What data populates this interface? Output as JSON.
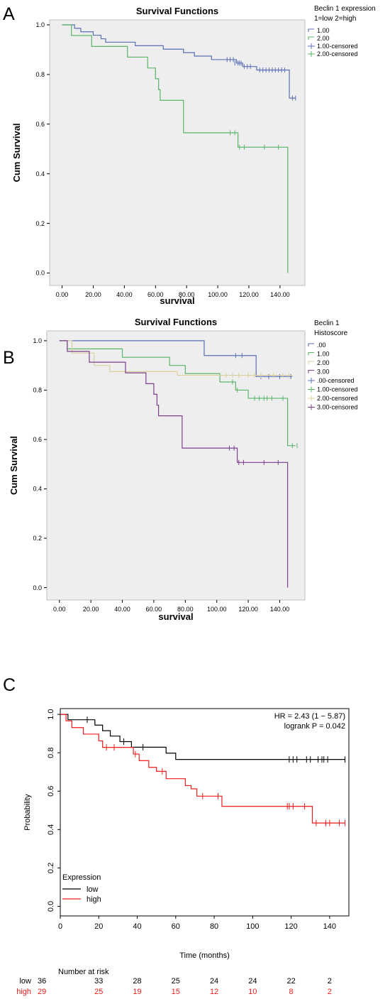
{
  "panels": {
    "A": {
      "letter": "A"
    },
    "B": {
      "letter": "B"
    },
    "C": {
      "letter": "C"
    }
  },
  "chart_data": [
    {
      "id": "A",
      "type": "line",
      "step": true,
      "title": "Survival Functions",
      "xlabel": "survival",
      "ylabel": "Cum Survival",
      "xlim": [
        -8,
        156
      ],
      "ylim": [
        -0.05,
        1.02
      ],
      "xticks": [
        0,
        20,
        40,
        60,
        80,
        100,
        120,
        140
      ],
      "xtick_labels": [
        "0.00",
        "20.00",
        "40.00",
        "60.00",
        "80.00",
        "100.00",
        "120.00",
        "140.00"
      ],
      "yticks": [
        0,
        0.2,
        0.4,
        0.6,
        0.8,
        1.0
      ],
      "ytick_labels": [
        "0.0",
        "0.2",
        "0.4",
        "0.6",
        "0.8",
        "1.0"
      ],
      "background": "#eeeeee",
      "legend": {
        "title_lines": [
          "Beclin 1 expression",
          "1=low 2=high"
        ],
        "position": "right",
        "entries": [
          {
            "label": "1.00",
            "color": "#5b6fb5",
            "kind": "line"
          },
          {
            "label": "2.00",
            "color": "#5ab46a",
            "kind": "line"
          },
          {
            "label": "1.00-censored",
            "color": "#5b6fb5",
            "kind": "cross"
          },
          {
            "label": "2.00-censored",
            "color": "#5ab46a",
            "kind": "cross"
          }
        ]
      },
      "series": [
        {
          "color": "#5b6fb5",
          "steps": [
            [
              0,
              1.0
            ],
            [
              8,
              0.986
            ],
            [
              12,
              0.972
            ],
            [
              20,
              0.958
            ],
            [
              25,
              0.944
            ],
            [
              28,
              0.93
            ],
            [
              34,
              0.93
            ],
            [
              47,
              0.916
            ],
            [
              65,
              0.902
            ],
            [
              78,
              0.888
            ],
            [
              85,
              0.874
            ],
            [
              96,
              0.86
            ],
            [
              112,
              0.846
            ],
            [
              116,
              0.832
            ],
            [
              125,
              0.818
            ],
            [
              146,
              0.705
            ],
            [
              150,
              0.705
            ]
          ],
          "censored": [
            [
              106,
              0.86
            ],
            [
              108,
              0.86
            ],
            [
              110,
              0.86
            ],
            [
              111,
              0.846
            ],
            [
              113,
              0.846
            ],
            [
              114,
              0.846
            ],
            [
              115,
              0.846
            ],
            [
              117,
              0.832
            ],
            [
              119,
              0.832
            ],
            [
              121,
              0.832
            ],
            [
              127,
              0.818
            ],
            [
              129,
              0.818
            ],
            [
              131,
              0.818
            ],
            [
              133,
              0.818
            ],
            [
              135,
              0.818
            ],
            [
              137,
              0.818
            ],
            [
              139,
              0.818
            ],
            [
              141,
              0.818
            ],
            [
              143,
              0.818
            ],
            [
              148,
              0.705
            ],
            [
              150,
              0.705
            ]
          ]
        },
        {
          "color": "#5ab46a",
          "steps": [
            [
              0,
              1.0
            ],
            [
              6,
              0.957
            ],
            [
              19,
              0.913
            ],
            [
              42,
              0.87
            ],
            [
              55,
              0.826
            ],
            [
              60,
              0.783
            ],
            [
              62,
              0.739
            ],
            [
              63,
              0.696
            ],
            [
              78,
              0.565
            ],
            [
              112,
              0.565
            ],
            [
              113,
              0.507
            ],
            [
              145,
              0.507
            ],
            [
              145,
              0.0
            ]
          ],
          "censored": [
            [
              108,
              0.565
            ],
            [
              111,
              0.565
            ],
            [
              114,
              0.507
            ],
            [
              117,
              0.507
            ],
            [
              130,
              0.507
            ],
            [
              139,
              0.507
            ]
          ]
        }
      ]
    },
    {
      "id": "B",
      "type": "line",
      "step": true,
      "title": "Survival Functions",
      "xlabel": "survival",
      "ylabel": "Cum Survival",
      "xlim": [
        -8,
        156
      ],
      "ylim": [
        -0.05,
        1.04
      ],
      "xticks": [
        0,
        20,
        40,
        60,
        80,
        100,
        120,
        140
      ],
      "xtick_labels": [
        "0.00",
        "20.00",
        "40.00",
        "60.00",
        "80.00",
        "100.00",
        "120.00",
        "140.00"
      ],
      "yticks": [
        0,
        0.2,
        0.4,
        0.6,
        0.8,
        1.0
      ],
      "ytick_labels": [
        "0.0",
        "0.2",
        "0.4",
        "0.6",
        "0.8",
        "1.0"
      ],
      "background": "#eeeeee",
      "legend": {
        "title_lines": [
          "Beclin 1",
          "Histoscore"
        ],
        "position": "right",
        "entries": [
          {
            "label": ".00",
            "color": "#5b6fb5",
            "kind": "line"
          },
          {
            "label": "1.00",
            "color": "#5ab46a",
            "kind": "line"
          },
          {
            "label": "2.00",
            "color": "#d9cf9f",
            "kind": "line"
          },
          {
            "label": "3.00",
            "color": "#7b3f8c",
            "kind": "line"
          },
          {
            "label": ".00-censored",
            "color": "#5b6fb5",
            "kind": "cross"
          },
          {
            "label": "1.00-censored",
            "color": "#5ab46a",
            "kind": "cross"
          },
          {
            "label": "2.00-censored",
            "color": "#d9cf9f",
            "kind": "cross"
          },
          {
            "label": "3.00-censored",
            "color": "#7b3f8c",
            "kind": "cross"
          }
        ]
      },
      "series": [
        {
          "color": "#5b6fb5",
          "steps": [
            [
              0,
              1.0
            ],
            [
              92,
              0.94
            ],
            [
              125,
              0.855
            ],
            [
              148,
              0.855
            ]
          ],
          "censored": [
            [
              112,
              0.94
            ],
            [
              116,
              0.94
            ],
            [
              128,
              0.855
            ],
            [
              133,
              0.855
            ],
            [
              140,
              0.855
            ],
            [
              147,
              0.855
            ]
          ]
        },
        {
          "color": "#5ab46a",
          "steps": [
            [
              0,
              1.0
            ],
            [
              5,
              0.967
            ],
            [
              40,
              0.933
            ],
            [
              70,
              0.9
            ],
            [
              80,
              0.867
            ],
            [
              102,
              0.833
            ],
            [
              112,
              0.8
            ],
            [
              120,
              0.767
            ],
            [
              145,
              0.575
            ],
            [
              150,
              0.575
            ]
          ],
          "censored": [
            [
              110,
              0.833
            ],
            [
              113,
              0.8
            ],
            [
              124,
              0.767
            ],
            [
              127,
              0.767
            ],
            [
              130,
              0.767
            ],
            [
              132,
              0.767
            ],
            [
              135,
              0.767
            ],
            [
              142,
              0.767
            ],
            [
              148,
              0.575
            ],
            [
              151,
              0.575
            ]
          ]
        },
        {
          "color": "#d9cf9f",
          "steps": [
            [
              0,
              1.0
            ],
            [
              8,
              0.95
            ],
            [
              22,
              0.9
            ],
            [
              32,
              0.875
            ],
            [
              60,
              0.875
            ],
            [
              75,
              0.86
            ],
            [
              148,
              0.86
            ]
          ],
          "censored": [
            [
              106,
              0.86
            ],
            [
              110,
              0.86
            ],
            [
              114,
              0.86
            ],
            [
              120,
              0.86
            ],
            [
              124,
              0.86
            ],
            [
              128,
              0.86
            ],
            [
              136,
              0.86
            ],
            [
              142,
              0.86
            ],
            [
              146,
              0.86
            ]
          ]
        },
        {
          "color": "#7b3f8c",
          "steps": [
            [
              0,
              1.0
            ],
            [
              5,
              0.957
            ],
            [
              19,
              0.913
            ],
            [
              42,
              0.87
            ],
            [
              55,
              0.826
            ],
            [
              60,
              0.783
            ],
            [
              62,
              0.739
            ],
            [
              63,
              0.696
            ],
            [
              78,
              0.565
            ],
            [
              112,
              0.565
            ],
            [
              113,
              0.507
            ],
            [
              145,
              0.507
            ],
            [
              145,
              0.0
            ]
          ],
          "censored": [
            [
              108,
              0.565
            ],
            [
              111,
              0.565
            ],
            [
              114,
              0.507
            ],
            [
              117,
              0.507
            ],
            [
              130,
              0.507
            ],
            [
              139,
              0.507
            ]
          ]
        }
      ]
    },
    {
      "id": "C",
      "type": "line",
      "step": true,
      "title": "",
      "xlabel": "Time (months)",
      "ylabel": "Probability",
      "xlim": [
        0,
        150
      ],
      "ylim": [
        -0.05,
        1.03
      ],
      "xticks": [
        0,
        20,
        40,
        60,
        80,
        100,
        120,
        140
      ],
      "xtick_labels": [
        "0",
        "20",
        "40",
        "60",
        "80",
        "100",
        "120",
        "140"
      ],
      "yticks": [
        0,
        0.2,
        0.4,
        0.6,
        0.8,
        1.0
      ],
      "ytick_labels": [
        "0.0",
        "0.2",
        "0.4",
        "0.6",
        "0.8",
        "1.0"
      ],
      "background": "#ffffff",
      "annotations": [
        "HR = 2.43 (1 − 5.87)",
        "logrank P = 0.042"
      ],
      "legend": {
        "title_lines": [
          "Expression"
        ],
        "position": "bottom-left",
        "entries": [
          {
            "label": "low",
            "color": "#000000",
            "kind": "line"
          },
          {
            "label": "high",
            "color": "#ee1c1c",
            "kind": "line"
          }
        ]
      },
      "series": [
        {
          "name": "low",
          "color": "#000000",
          "steps": [
            [
              0,
              1.0
            ],
            [
              4,
              0.972
            ],
            [
              18,
              0.944
            ],
            [
              22,
              0.915
            ],
            [
              26,
              0.887
            ],
            [
              31,
              0.858
            ],
            [
              37,
              0.829
            ],
            [
              55,
              0.798
            ],
            [
              60,
              0.765
            ],
            [
              148,
              0.765
            ]
          ],
          "censored": [
            [
              14,
              0.972
            ],
            [
              33,
              0.858
            ],
            [
              43,
              0.829
            ],
            [
              119,
              0.765
            ],
            [
              121,
              0.765
            ],
            [
              123,
              0.765
            ],
            [
              128,
              0.765
            ],
            [
              130,
              0.765
            ],
            [
              134,
              0.765
            ],
            [
              136,
              0.765
            ],
            [
              137,
              0.765
            ],
            [
              139,
              0.765
            ],
            [
              148,
              0.765
            ]
          ]
        },
        {
          "name": "high",
          "color": "#ee1c1c",
          "steps": [
            [
              0,
              1.0
            ],
            [
              3,
              0.966
            ],
            [
              6,
              0.931
            ],
            [
              12,
              0.897
            ],
            [
              20,
              0.862
            ],
            [
              22,
              0.828
            ],
            [
              38,
              0.793
            ],
            [
              41,
              0.759
            ],
            [
              46,
              0.724
            ],
            [
              50,
              0.703
            ],
            [
              55,
              0.665
            ],
            [
              65,
              0.629
            ],
            [
              68,
              0.612
            ],
            [
              71,
              0.574
            ],
            [
              84,
              0.521
            ],
            [
              129,
              0.521
            ],
            [
              131,
              0.434
            ],
            [
              148,
              0.434
            ]
          ],
          "censored": [
            [
              24,
              0.828
            ],
            [
              28,
              0.828
            ],
            [
              39,
              0.793
            ],
            [
              53,
              0.703
            ],
            [
              74,
              0.574
            ],
            [
              82,
              0.574
            ],
            [
              118,
              0.521
            ],
            [
              119,
              0.521
            ],
            [
              121,
              0.521
            ],
            [
              127,
              0.521
            ],
            [
              133,
              0.434
            ],
            [
              138,
              0.434
            ],
            [
              140,
              0.434
            ],
            [
              145,
              0.434
            ],
            [
              148,
              0.434
            ]
          ]
        }
      ],
      "at_risk": {
        "title": "Number at risk",
        "rows": [
          {
            "label": "low",
            "color": "#000000",
            "values": [
              "36",
              "33",
              "28",
              "25",
              "24",
              "24",
              "22",
              "2"
            ]
          },
          {
            "label": "high",
            "color": "#ee1c1c",
            "values": [
              "29",
              "25",
              "19",
              "15",
              "12",
              "10",
              "8",
              "2"
            ]
          }
        ]
      }
    }
  ]
}
